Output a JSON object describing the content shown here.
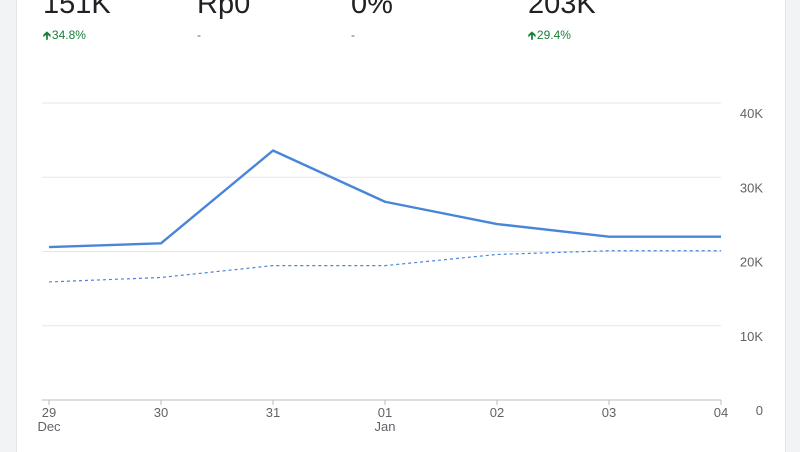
{
  "metrics": [
    {
      "value": "151K",
      "change": "34.8%",
      "direction": "up"
    },
    {
      "value": "Rp0",
      "change": "-",
      "direction": "none"
    },
    {
      "value": "0%",
      "change": "-",
      "direction": "none"
    },
    {
      "value": "203K",
      "change": "29.4%",
      "direction": "up"
    }
  ],
  "colors": {
    "primary_line": "#4a86d8",
    "comparison_line": "#4a86d8",
    "gridline": "#e6e6e6",
    "up_change": "#188038"
  },
  "icons": {
    "up_change": "arrow-up-icon"
  },
  "chart_data": {
    "type": "line",
    "categories": [
      "29",
      "30",
      "31",
      "01",
      "02",
      "03",
      "04"
    ],
    "category_sublabels": [
      "Dec",
      "",
      "",
      "Jan",
      "",
      "",
      ""
    ],
    "series": [
      {
        "style": "solid",
        "values": [
          20600,
          21100,
          33600,
          26700,
          23700,
          22000,
          22000
        ]
      },
      {
        "style": "dashed",
        "values": [
          15900,
          16500,
          18100,
          18100,
          19600,
          20100,
          20100
        ]
      }
    ],
    "yticks": [
      {
        "value": 0,
        "label": "0"
      },
      {
        "value": 10000,
        "label": "10K"
      },
      {
        "value": 20000,
        "label": "20K"
      },
      {
        "value": 30000,
        "label": "30K"
      },
      {
        "value": 40000,
        "label": "40K"
      }
    ],
    "ylim": [
      0,
      40000
    ],
    "y_axis_position": "right",
    "grid": true
  }
}
